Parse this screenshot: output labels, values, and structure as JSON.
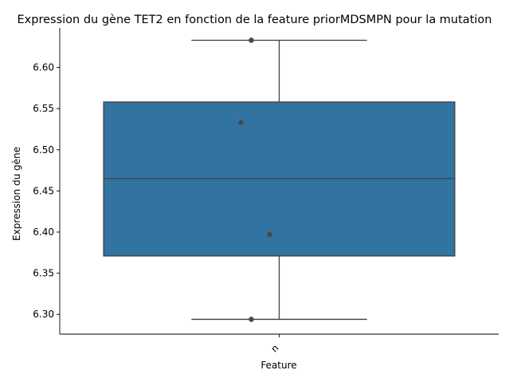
{
  "chart_data": {
    "type": "box",
    "title": "Expression du gène TET2 en fonction de la feature priorMDSMPN pour la mutation",
    "xlabel": "Feature",
    "ylabel": "Expression du gène",
    "categories": [
      "n"
    ],
    "ylim": [
      6.276,
      6.648
    ],
    "yticks": [
      6.3,
      6.35,
      6.4,
      6.45,
      6.5,
      6.55,
      6.6
    ],
    "ytick_labels": [
      "6.30",
      "6.35",
      "6.40",
      "6.45",
      "6.50",
      "6.55",
      "6.60"
    ],
    "box": {
      "category": "n",
      "whisker_low": 6.294,
      "q1": 6.371,
      "median": 6.465,
      "q3": 6.558,
      "whisker_high": 6.633
    },
    "points": [
      {
        "category": "n",
        "y": 6.633
      },
      {
        "category": "n",
        "y": 6.533
      },
      {
        "category": "n",
        "y": 6.397
      },
      {
        "category": "n",
        "y": 6.294
      }
    ],
    "colors": {
      "box_fill": "#3274a1",
      "edge": "#3f3f3f",
      "point": "#4a4a4a"
    },
    "grid": false,
    "legend": "none"
  }
}
